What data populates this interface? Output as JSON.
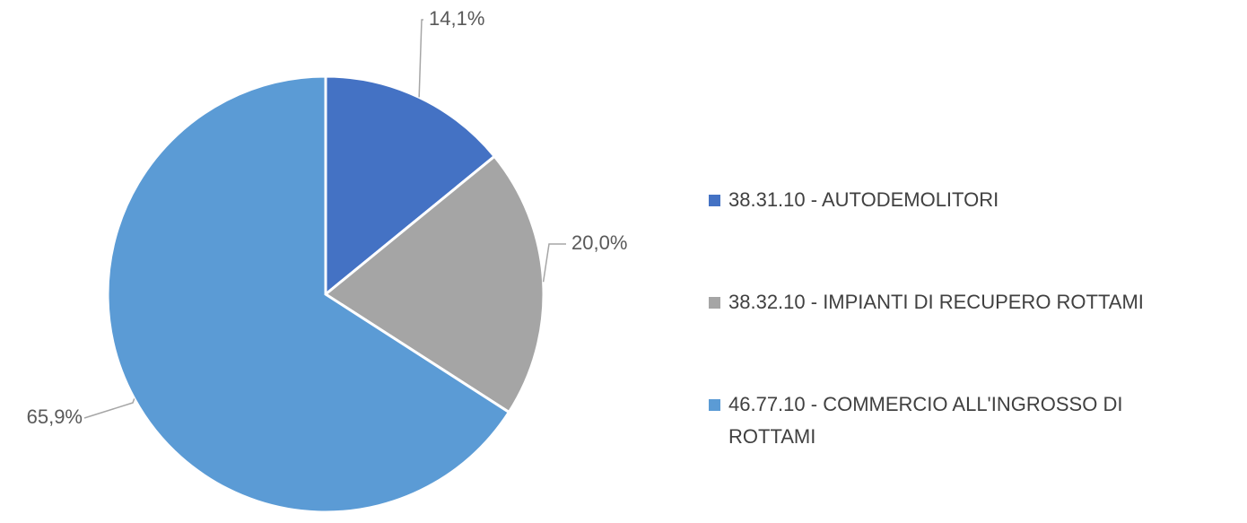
{
  "chart_data": {
    "type": "pie",
    "categories": [
      "38.31.10 - AUTODEMOLITORI",
      "38.32.10 - IMPIANTI DI RECUPERO ROTTAMI",
      "46.77.10 - COMMERCIO ALL'INGROSSO DI ROTTAMI"
    ],
    "values": [
      14.1,
      20.0,
      65.9
    ],
    "value_labels": [
      "14,1%",
      "20,0%",
      "65,9%"
    ],
    "colors": [
      "#4472c4",
      "#a5a5a5",
      "#5b9bd5"
    ],
    "legend": "right"
  }
}
